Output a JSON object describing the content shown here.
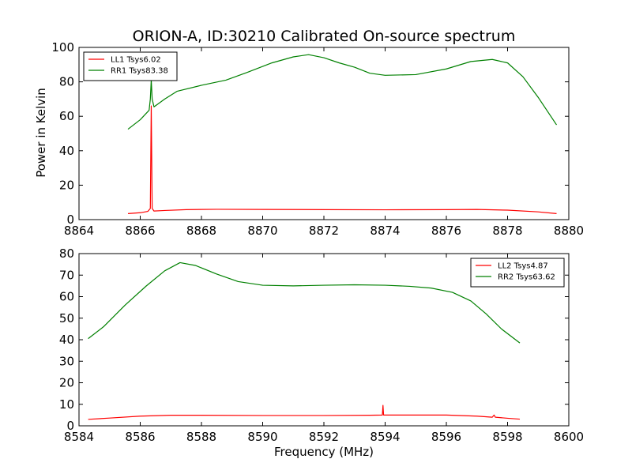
{
  "title": "ORION-A, ID:30210 Calibrated On-source spectrum",
  "ylabel": "Power in Kelvin",
  "xlabel": "Frequency (MHz)",
  "chart_data": [
    {
      "type": "line",
      "xlim": [
        8864,
        8880
      ],
      "ylim": [
        0,
        100
      ],
      "xticks": [
        "8864",
        "8866",
        "8868",
        "8870",
        "8872",
        "8874",
        "8876",
        "8878",
        "8880"
      ],
      "yticks": [
        "0",
        "20",
        "40",
        "60",
        "80",
        "100"
      ],
      "legend_position": "top-left",
      "series": [
        {
          "name": "LL1 Tsys6.02",
          "color": "#ff0000",
          "points": [
            [
              8865.6,
              3.5
            ],
            [
              8866.0,
              4.0
            ],
            [
              8866.25,
              4.8
            ],
            [
              8866.33,
              6.5
            ],
            [
              8866.36,
              66
            ],
            [
              8866.39,
              6.5
            ],
            [
              8866.45,
              5.0
            ],
            [
              8866.8,
              5.3
            ],
            [
              8867.5,
              5.8
            ],
            [
              8868.5,
              6.0
            ],
            [
              8870,
              5.9
            ],
            [
              8872,
              5.8
            ],
            [
              8874,
              5.7
            ],
            [
              8876,
              5.8
            ],
            [
              8877,
              5.9
            ],
            [
              8878,
              5.5
            ],
            [
              8879.0,
              4.5
            ],
            [
              8879.6,
              3.5
            ]
          ]
        },
        {
          "name": "RR1 Tsys83.38",
          "color": "#008000",
          "points": [
            [
              8865.6,
              52.5
            ],
            [
              8866.0,
              58
            ],
            [
              8866.29,
              63.5
            ],
            [
              8866.33,
              70
            ],
            [
              8866.36,
              81
            ],
            [
              8866.39,
              70
            ],
            [
              8866.45,
              65.5
            ],
            [
              8866.8,
              70
            ],
            [
              8867.2,
              74.5
            ],
            [
              8868,
              78
            ],
            [
              8868.8,
              81
            ],
            [
              8869.5,
              85.5
            ],
            [
              8870.3,
              91
            ],
            [
              8871.0,
              94.5
            ],
            [
              8871.5,
              95.8
            ],
            [
              8872.0,
              94
            ],
            [
              8872.5,
              91
            ],
            [
              8873.0,
              88.5
            ],
            [
              8873.5,
              85
            ],
            [
              8874.0,
              83.8
            ],
            [
              8875.0,
              84.2
            ],
            [
              8876.0,
              87.5
            ],
            [
              8876.8,
              91.8
            ],
            [
              8877.5,
              93
            ],
            [
              8878.0,
              91
            ],
            [
              8878.5,
              83
            ],
            [
              8879.0,
              71
            ],
            [
              8879.6,
              55
            ]
          ]
        }
      ]
    },
    {
      "type": "line",
      "xlim": [
        8584,
        8600
      ],
      "ylim": [
        0,
        80
      ],
      "xticks": [
        "8584",
        "8586",
        "8588",
        "8590",
        "8592",
        "8594",
        "8596",
        "8598",
        "8600"
      ],
      "yticks": [
        "0",
        "10",
        "20",
        "30",
        "40",
        "50",
        "60",
        "70",
        "80"
      ],
      "legend_position": "top-right",
      "series": [
        {
          "name": "LL2 Tsys4.87",
          "color": "#ff0000",
          "points": [
            [
              8584.3,
              3.0
            ],
            [
              8585,
              3.6
            ],
            [
              8586,
              4.5
            ],
            [
              8587,
              4.9
            ],
            [
              8588,
              4.9
            ],
            [
              8590,
              4.8
            ],
            [
              8592,
              4.8
            ],
            [
              8593.5,
              4.9
            ],
            [
              8593.91,
              5.0
            ],
            [
              8593.93,
              9.5
            ],
            [
              8593.95,
              5.0
            ],
            [
              8595,
              5.0
            ],
            [
              8596,
              5.0
            ],
            [
              8597,
              4.5
            ],
            [
              8597.5,
              4.0
            ],
            [
              8597.56,
              5.0
            ],
            [
              8597.6,
              4.0
            ],
            [
              8598,
              3.5
            ],
            [
              8598.4,
              3.1
            ]
          ]
        },
        {
          "name": "RR2 Tsys63.62",
          "color": "#008000",
          "points": [
            [
              8584.3,
              40.5
            ],
            [
              8584.8,
              46
            ],
            [
              8585.5,
              56
            ],
            [
              8586.2,
              65
            ],
            [
              8586.8,
              72
            ],
            [
              8587.3,
              75.8
            ],
            [
              8587.8,
              74.5
            ],
            [
              8588.5,
              70.5
            ],
            [
              8589.2,
              67
            ],
            [
              8590,
              65.3
            ],
            [
              8591,
              65.0
            ],
            [
              8592,
              65.3
            ],
            [
              8593,
              65.5
            ],
            [
              8594,
              65.3
            ],
            [
              8594.8,
              64.8
            ],
            [
              8595.5,
              64.0
            ],
            [
              8596.2,
              62
            ],
            [
              8596.8,
              58
            ],
            [
              8597.3,
              52
            ],
            [
              8597.8,
              45
            ],
            [
              8598.4,
              38.5
            ]
          ]
        }
      ]
    }
  ]
}
